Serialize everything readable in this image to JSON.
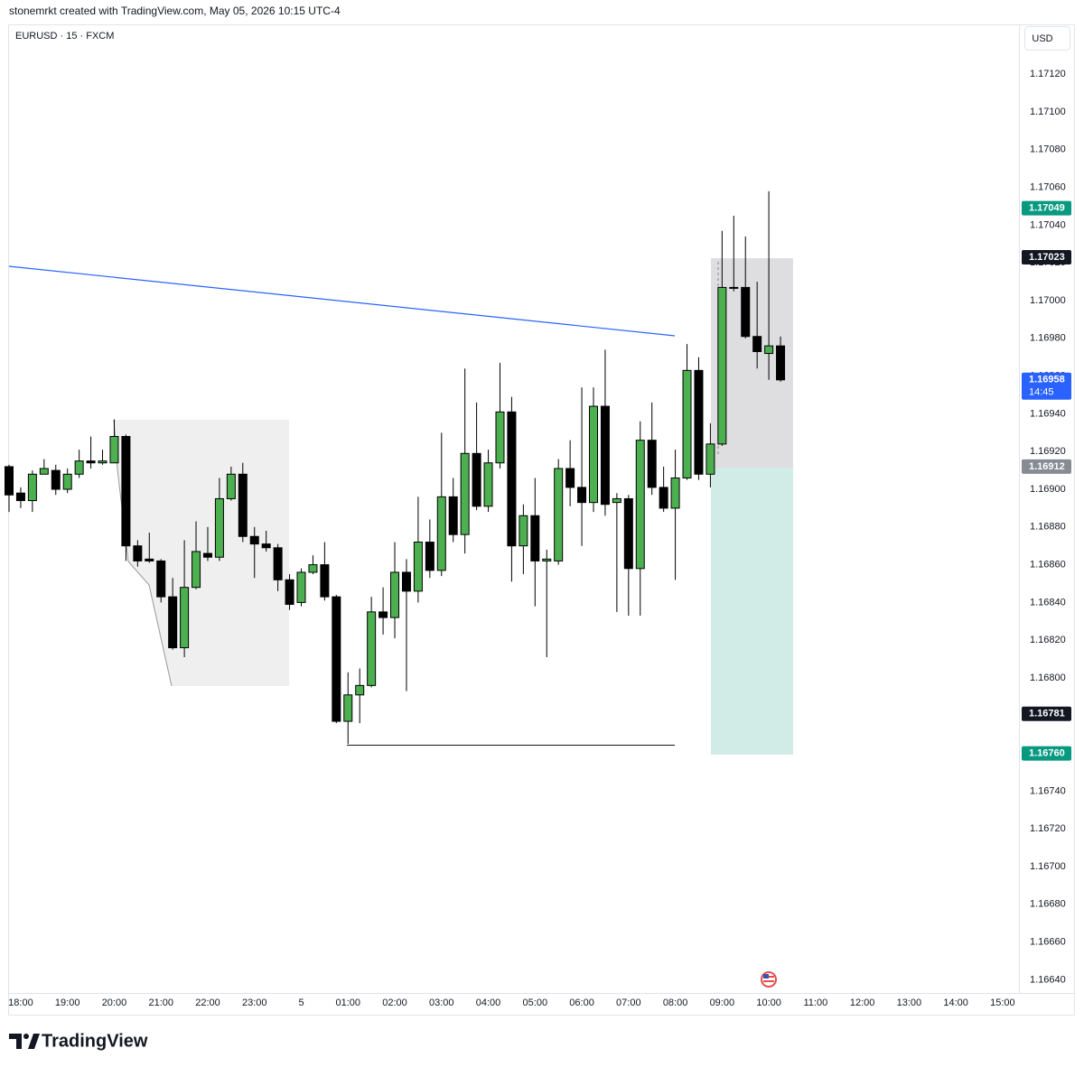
{
  "header": {
    "caption": "stonemrkt created with TradingView.com, May 05, 2026 10:15 UTC-4"
  },
  "chart_data": {
    "type": "candlestick",
    "symbol": "EURUSD · 15 · FXCM",
    "currency": "USD",
    "categories": [
      null,
      "18:00",
      null,
      null,
      null,
      "19:00",
      null,
      null,
      null,
      "20:00",
      null,
      null,
      null,
      "21:00",
      null,
      null,
      null,
      "22:00",
      null,
      null,
      null,
      "23:00",
      null,
      null,
      null,
      "5",
      null,
      null,
      null,
      "01:00",
      null,
      null,
      null,
      "02:00",
      null,
      null,
      null,
      "03:00",
      null,
      null,
      null,
      "04:00",
      null,
      null,
      null,
      "05:00",
      null,
      null,
      null,
      "06:00",
      null,
      null,
      null,
      "07:00",
      null,
      null,
      null,
      "08:00",
      null,
      null,
      null,
      "09:00",
      null,
      null,
      null,
      "10:00",
      null,
      null,
      null,
      "11:00",
      null,
      null,
      null,
      "12:00",
      null,
      null,
      null,
      "13:00",
      null,
      null,
      null,
      "14:00",
      null,
      null,
      null,
      "15:00"
    ],
    "open": [
      1.16912,
      1.16898,
      1.16894,
      1.16908,
      1.1691,
      1.169,
      1.16908,
      1.16915,
      1.16914,
      1.16914,
      1.16928,
      1.1687,
      1.16863,
      1.16862,
      1.16843,
      1.16816,
      1.16848,
      1.16866,
      1.16864,
      1.16895,
      1.16908,
      1.16875,
      1.16871,
      1.16869,
      1.16852,
      1.1684,
      1.16856,
      1.1686,
      1.16843,
      1.16777,
      1.16791,
      1.16796,
      1.16835,
      1.16832,
      1.16856,
      1.16846,
      1.16872,
      1.16857,
      1.16896,
      1.16876,
      1.16919,
      1.16891,
      1.16914,
      1.16941,
      1.1687,
      1.16886,
      1.16862,
      1.16862,
      1.16911,
      1.16901,
      1.16893,
      1.16944,
      1.16893,
      1.16895,
      1.16858,
      1.16926,
      1.16901,
      1.1689,
      1.16906,
      1.16963,
      1.16908,
      1.16924,
      1.17007,
      1.17007,
      1.16981,
      1.16972,
      1.16976,
      null,
      null,
      null,
      null,
      null,
      null,
      null,
      null,
      null,
      null,
      null,
      null,
      null,
      null,
      null,
      null,
      null,
      null,
      null
    ],
    "high": [
      1.16913,
      1.16901,
      1.1691,
      1.16916,
      1.16913,
      1.16911,
      1.16921,
      1.16928,
      1.16921,
      1.16937,
      1.16929,
      1.16873,
      1.16877,
      1.16863,
      1.16853,
      1.16873,
      1.16883,
      1.1688,
      1.16906,
      1.16912,
      1.16914,
      1.1688,
      1.16878,
      1.16871,
      1.16855,
      1.16858,
      1.16865,
      1.16872,
      1.16844,
      1.16803,
      1.16805,
      1.16843,
      1.16848,
      1.16872,
      1.16863,
      1.16896,
      1.16884,
      1.1693,
      1.16906,
      1.16964,
      1.16946,
      1.16921,
      1.16967,
      1.16949,
      1.16892,
      1.16906,
      1.16868,
      1.16916,
      1.16926,
      1.16954,
      1.16954,
      1.16974,
      1.16898,
      1.16897,
      1.16936,
      1.16946,
      1.16912,
      1.16921,
      1.16977,
      1.1697,
      1.16935,
      1.17037,
      1.17045,
      1.17034,
      1.1701,
      1.17058,
      1.16981,
      null,
      null,
      null,
      null,
      null,
      null,
      null,
      null,
      null,
      null,
      null,
      null,
      null,
      null,
      null,
      null,
      null,
      null,
      null
    ],
    "low": [
      1.16888,
      1.1689,
      1.16888,
      1.16908,
      1.16897,
      1.16898,
      1.16906,
      1.16911,
      1.16913,
      1.16914,
      1.16862,
      1.16859,
      1.16861,
      1.1684,
      1.16815,
      1.16811,
      1.16847,
      1.16862,
      1.16862,
      1.16894,
      1.16872,
      1.16853,
      1.16867,
      1.16846,
      1.16836,
      1.16838,
      1.16855,
      1.16841,
      1.16776,
      1.16765,
      1.16776,
      1.16795,
      1.16823,
      1.16821,
      1.16793,
      1.1684,
      1.16853,
      1.16854,
      1.16872,
      1.16866,
      1.16889,
      1.16888,
      1.16911,
      1.16851,
      1.16855,
      1.16838,
      1.16811,
      1.1686,
      1.16891,
      1.1687,
      1.16888,
      1.16886,
      1.16835,
      1.16833,
      1.16833,
      1.16897,
      1.16888,
      1.16852,
      1.16905,
      1.16905,
      1.16901,
      1.16923,
      1.17005,
      1.1698,
      1.16964,
      1.16958,
      1.16957,
      null,
      null,
      null,
      null,
      null,
      null,
      null,
      null,
      null,
      null,
      null,
      null,
      null,
      null,
      null,
      null,
      null,
      null,
      null
    ],
    "close": [
      1.16897,
      1.16894,
      1.16908,
      1.16911,
      1.169,
      1.16908,
      1.16915,
      1.16914,
      1.16915,
      1.16928,
      1.1687,
      1.16862,
      1.16862,
      1.16843,
      1.16816,
      1.16848,
      1.16867,
      1.16864,
      1.16895,
      1.16908,
      1.16875,
      1.16871,
      1.16869,
      1.16852,
      1.16839,
      1.16856,
      1.1686,
      1.16843,
      1.16777,
      1.16791,
      1.16796,
      1.16835,
      1.16832,
      1.16856,
      1.16846,
      1.16872,
      1.16857,
      1.16896,
      1.16876,
      1.16919,
      1.16891,
      1.16914,
      1.16941,
      1.1687,
      1.16886,
      1.16862,
      1.16863,
      1.16911,
      1.16901,
      1.16893,
      1.16944,
      1.16892,
      1.16895,
      1.16858,
      1.16926,
      1.16901,
      1.1689,
      1.16906,
      1.16963,
      1.16908,
      1.16924,
      1.17007,
      1.17007,
      1.16981,
      1.16973,
      1.16976,
      1.16958,
      null,
      null,
      null,
      null,
      null,
      null,
      null,
      null,
      null,
      null,
      null,
      null,
      null,
      null,
      null,
      null,
      null,
      null,
      null
    ],
    "up_color": "#4caf50",
    "down_color": "#000000",
    "ylim": [
      1.16633,
      1.17145
    ],
    "yticks": [
      {
        "value": 1.1664,
        "label": "1.16640"
      },
      {
        "value": 1.1666,
        "label": "1.16660"
      },
      {
        "value": 1.1668,
        "label": "1.16680"
      },
      {
        "value": 1.167,
        "label": "1.16700"
      },
      {
        "value": 1.1672,
        "label": "1.16720"
      },
      {
        "value": 1.1674,
        "label": "1.16740"
      },
      {
        "value": 1.1676,
        "label": "1.16760"
      },
      {
        "value": 1.1678,
        "label": "1.16780"
      },
      {
        "value": 1.168,
        "label": "1.16800"
      },
      {
        "value": 1.1682,
        "label": "1.16820"
      },
      {
        "value": 1.1684,
        "label": "1.16840"
      },
      {
        "value": 1.1686,
        "label": "1.16860"
      },
      {
        "value": 1.1688,
        "label": "1.16880"
      },
      {
        "value": 1.169,
        "label": "1.16900"
      },
      {
        "value": 1.1692,
        "label": "1.16920"
      },
      {
        "value": 1.1694,
        "label": "1.16940"
      },
      {
        "value": 1.1696,
        "label": "1.16960"
      },
      {
        "value": 1.1698,
        "label": "1.16980"
      },
      {
        "value": 1.17,
        "label": "1.17000"
      },
      {
        "value": 1.1702,
        "label": "1.17020"
      },
      {
        "value": 1.1704,
        "label": "1.17040"
      },
      {
        "value": 1.1706,
        "label": "1.17060"
      },
      {
        "value": 1.1708,
        "label": "1.17080"
      },
      {
        "value": 1.171,
        "label": "1.17100"
      },
      {
        "value": 1.1712,
        "label": "1.17120"
      }
    ],
    "grid": false,
    "price_tags": [
      {
        "value": 1.17049,
        "color": "#089981"
      },
      {
        "value": 1.17023,
        "color": "#131722"
      },
      {
        "value": 1.16958,
        "color": "#2962ff",
        "countdown": "14:45"
      },
      {
        "value": 1.16912,
        "color": "#878b94"
      },
      {
        "value": 1.16781,
        "color": "#131722"
      },
      {
        "value": 1.1676,
        "label": "1.16760",
        "color": "#089981"
      }
    ]
  },
  "footer": {
    "brand": "TradingView"
  }
}
